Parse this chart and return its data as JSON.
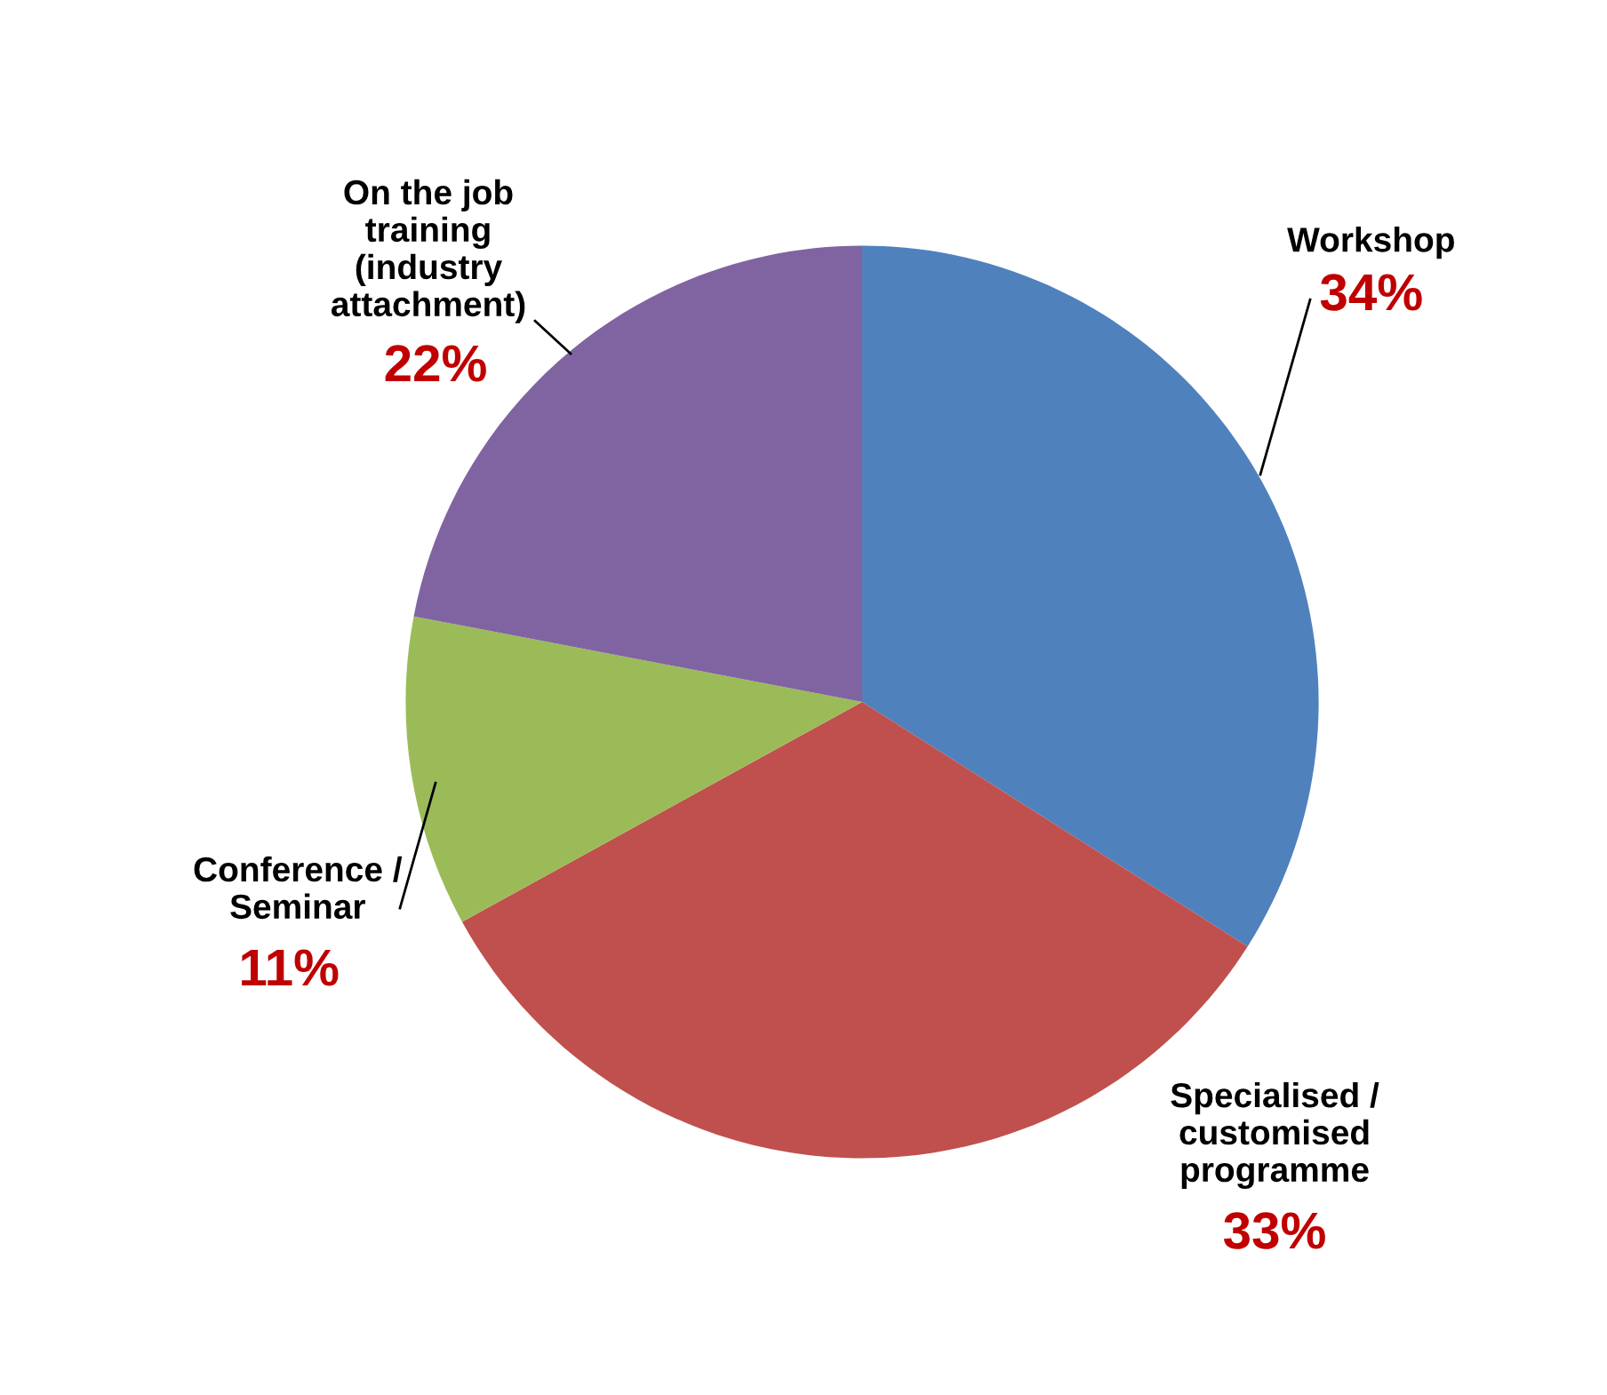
{
  "chart_data": {
    "type": "pie",
    "categories": [
      "Workshop",
      "Specialised /\ncustomised\nprogramme",
      "Conference /\nSeminar",
      "On the job\ntraining\n(industry\nattachment)"
    ],
    "values": [
      34,
      33,
      11,
      22
    ],
    "colors": [
      "#4f81bd",
      "#c0504d",
      "#9bbb59",
      "#8064a2"
    ],
    "value_labels": [
      "34%",
      "33%",
      "11%",
      "22%"
    ],
    "legend": false
  }
}
